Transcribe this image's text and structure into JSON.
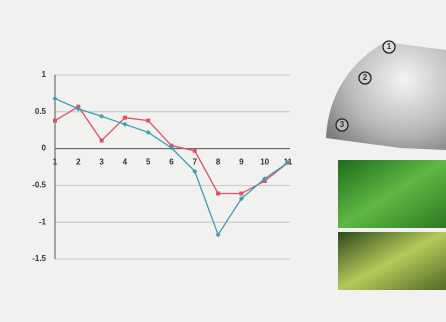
{
  "chart_data": {
    "type": "line",
    "categories": [
      "1",
      "2",
      "3",
      "4",
      "5",
      "6",
      "7",
      "8",
      "9",
      "10",
      "11"
    ],
    "series": [
      {
        "name": null,
        "color": "#e0506a",
        "values": [
          0.38,
          0.57,
          0.11,
          0.42,
          0.38,
          0.04,
          -0.03,
          -0.61,
          -0.61,
          -0.44,
          -0.19
        ]
      },
      {
        "name": null,
        "color": "#3a9fb2",
        "values": [
          0.68,
          0.54,
          0.44,
          0.33,
          0.22,
          0.01,
          -0.31,
          -1.17,
          -0.68,
          -0.41,
          -0.19
        ]
      }
    ],
    "ylim": [
      -1.5,
      1
    ],
    "yticks": [
      1,
      0.5,
      0,
      -0.5,
      -1,
      -1.5
    ],
    "grid": true
  },
  "diagram": {
    "markers": [
      "1",
      "2",
      "3"
    ]
  }
}
